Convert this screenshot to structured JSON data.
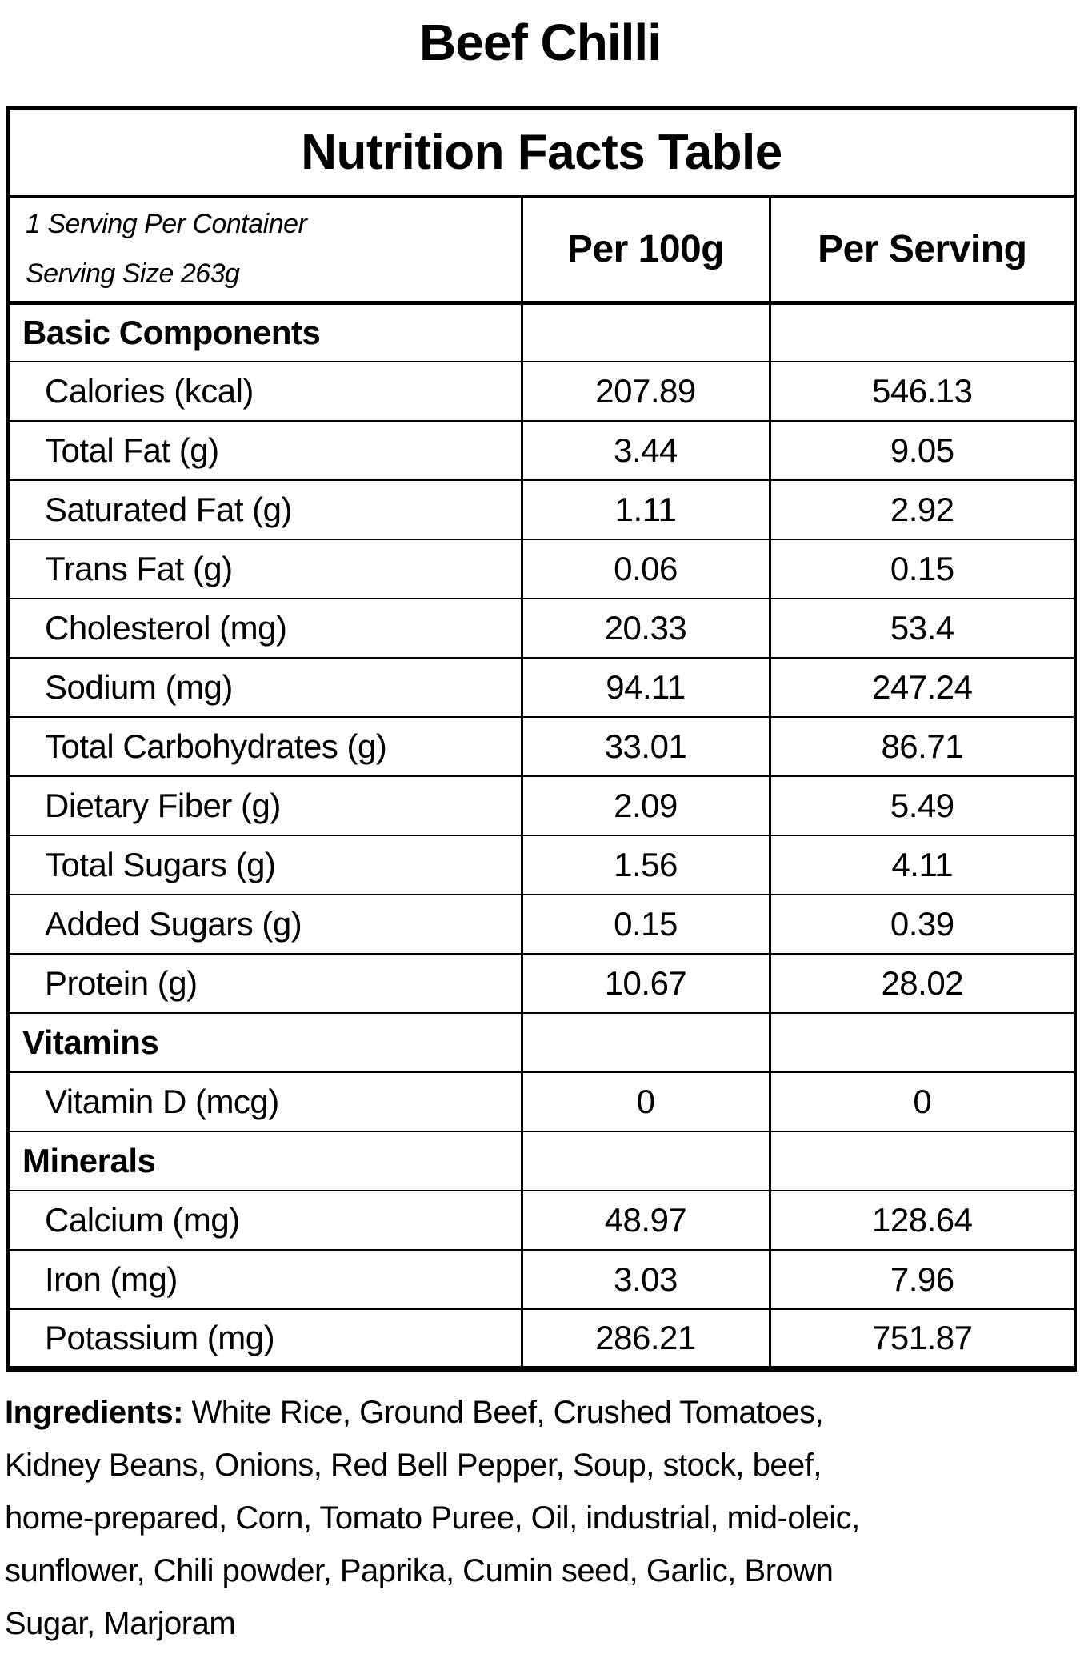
{
  "title": "Beef Chilli",
  "table": {
    "header": "Nutrition Facts Table",
    "serving_info": {
      "servings_per_container": "1 Serving Per Container",
      "serving_size": "Serving Size 263g"
    },
    "columns": [
      "Per 100g",
      "Per Serving"
    ],
    "rows": [
      {
        "type": "section",
        "label": "Basic Components",
        "per_100g": "",
        "per_serving": ""
      },
      {
        "type": "item",
        "label": "Calories (kcal)",
        "per_100g": "207.89",
        "per_serving": "546.13"
      },
      {
        "type": "item",
        "label": "Total Fat (g)",
        "per_100g": "3.44",
        "per_serving": "9.05"
      },
      {
        "type": "item",
        "label": "Saturated Fat (g)",
        "per_100g": "1.11",
        "per_serving": "2.92"
      },
      {
        "type": "item",
        "label": "Trans Fat (g)",
        "per_100g": "0.06",
        "per_serving": "0.15"
      },
      {
        "type": "item",
        "label": "Cholesterol (mg)",
        "per_100g": "20.33",
        "per_serving": "53.4"
      },
      {
        "type": "item",
        "label": "Sodium (mg)",
        "per_100g": "94.11",
        "per_serving": "247.24"
      },
      {
        "type": "item",
        "label": "Total Carbohydrates (g)",
        "per_100g": "33.01",
        "per_serving": "86.71"
      },
      {
        "type": "item",
        "label": "Dietary Fiber (g)",
        "per_100g": "2.09",
        "per_serving": "5.49"
      },
      {
        "type": "item",
        "label": "Total Sugars (g)",
        "per_100g": "1.56",
        "per_serving": "4.11"
      },
      {
        "type": "item",
        "label": "Added Sugars (g)",
        "per_100g": "0.15",
        "per_serving": "0.39"
      },
      {
        "type": "item",
        "label": "Protein (g)",
        "per_100g": "10.67",
        "per_serving": "28.02"
      },
      {
        "type": "section",
        "label": "Vitamins",
        "per_100g": "",
        "per_serving": ""
      },
      {
        "type": "item",
        "label": "Vitamin D (mcg)",
        "per_100g": "0",
        "per_serving": "0"
      },
      {
        "type": "section",
        "label": "Minerals",
        "per_100g": "",
        "per_serving": ""
      },
      {
        "type": "item",
        "label": "Calcium (mg)",
        "per_100g": "48.97",
        "per_serving": "128.64"
      },
      {
        "type": "item",
        "label": "Iron (mg)",
        "per_100g": "3.03",
        "per_serving": "7.96"
      },
      {
        "type": "item",
        "label": "Potassium (mg)",
        "per_100g": "286.21",
        "per_serving": "751.87"
      }
    ]
  },
  "ingredients": {
    "label": "Ingredients:",
    "text": " White Rice, Ground Beef, Crushed Tomatoes, Kidney Beans, Onions, Red Bell Pepper, Soup, stock, beef, home-prepared, Corn, Tomato Puree, Oil, industrial, mid-oleic, sunflower, Chili powder, Paprika, Cumin seed, Garlic, Brown Sugar, Marjoram"
  }
}
